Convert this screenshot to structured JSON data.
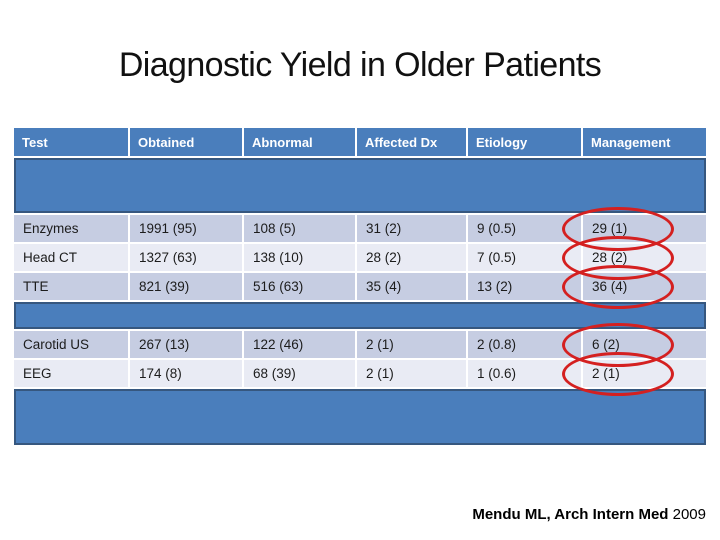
{
  "slide": {
    "title": "Diagnostic Yield in Older Patients",
    "citation": {
      "source_bold": "Mendu ML, Arch Intern Med",
      "year": " 2009"
    }
  },
  "colors": {
    "header_blue": "#4A7EBC",
    "band_blue": "#4A7EBC",
    "band_border": "#36577F",
    "row_dark": "#C6CDE2",
    "row_light": "#E9EBF4",
    "annotation_red": "#D42020",
    "header_text": "#FFFFFF",
    "body_text": "#1C1C1C"
  },
  "table": {
    "columns": [
      "Test",
      "Obtained",
      "Abnormal",
      "Affected Dx",
      "Etiology",
      "Management"
    ],
    "groups": [
      {
        "rows": [
          {
            "test": "Enzymes",
            "obtained": "1991 (95)",
            "abnormal": "108 (5)",
            "affected_dx": "31 (2)",
            "etiology": "9 (0.5)",
            "management": "29 (1)",
            "management_circled": true
          },
          {
            "test": "Head CT",
            "obtained": "1327 (63)",
            "abnormal": "138 (10)",
            "affected_dx": "28 (2)",
            "etiology": "7 (0.5)",
            "management": "28 (2)",
            "management_circled": true
          },
          {
            "test": "TTE",
            "obtained": "821 (39)",
            "abnormal": "516 (63)",
            "affected_dx": "35 (4)",
            "etiology": "13 (2)",
            "management": "36 (4)",
            "management_circled": true
          }
        ]
      },
      {
        "rows": [
          {
            "test": "Carotid US",
            "obtained": "267 (13)",
            "abnormal": "122 (46)",
            "affected_dx": "2 (1)",
            "etiology": "2 (0.8)",
            "management": "6 (2)",
            "management_circled": true
          },
          {
            "test": "EEG",
            "obtained": "174 (8)",
            "abnormal": "68 (39)",
            "affected_dx": "2 (1)",
            "etiology": "1 (0.6)",
            "management": "2 (1)",
            "management_circled": true
          }
        ]
      }
    ],
    "hidden_band_rows": 3
  }
}
